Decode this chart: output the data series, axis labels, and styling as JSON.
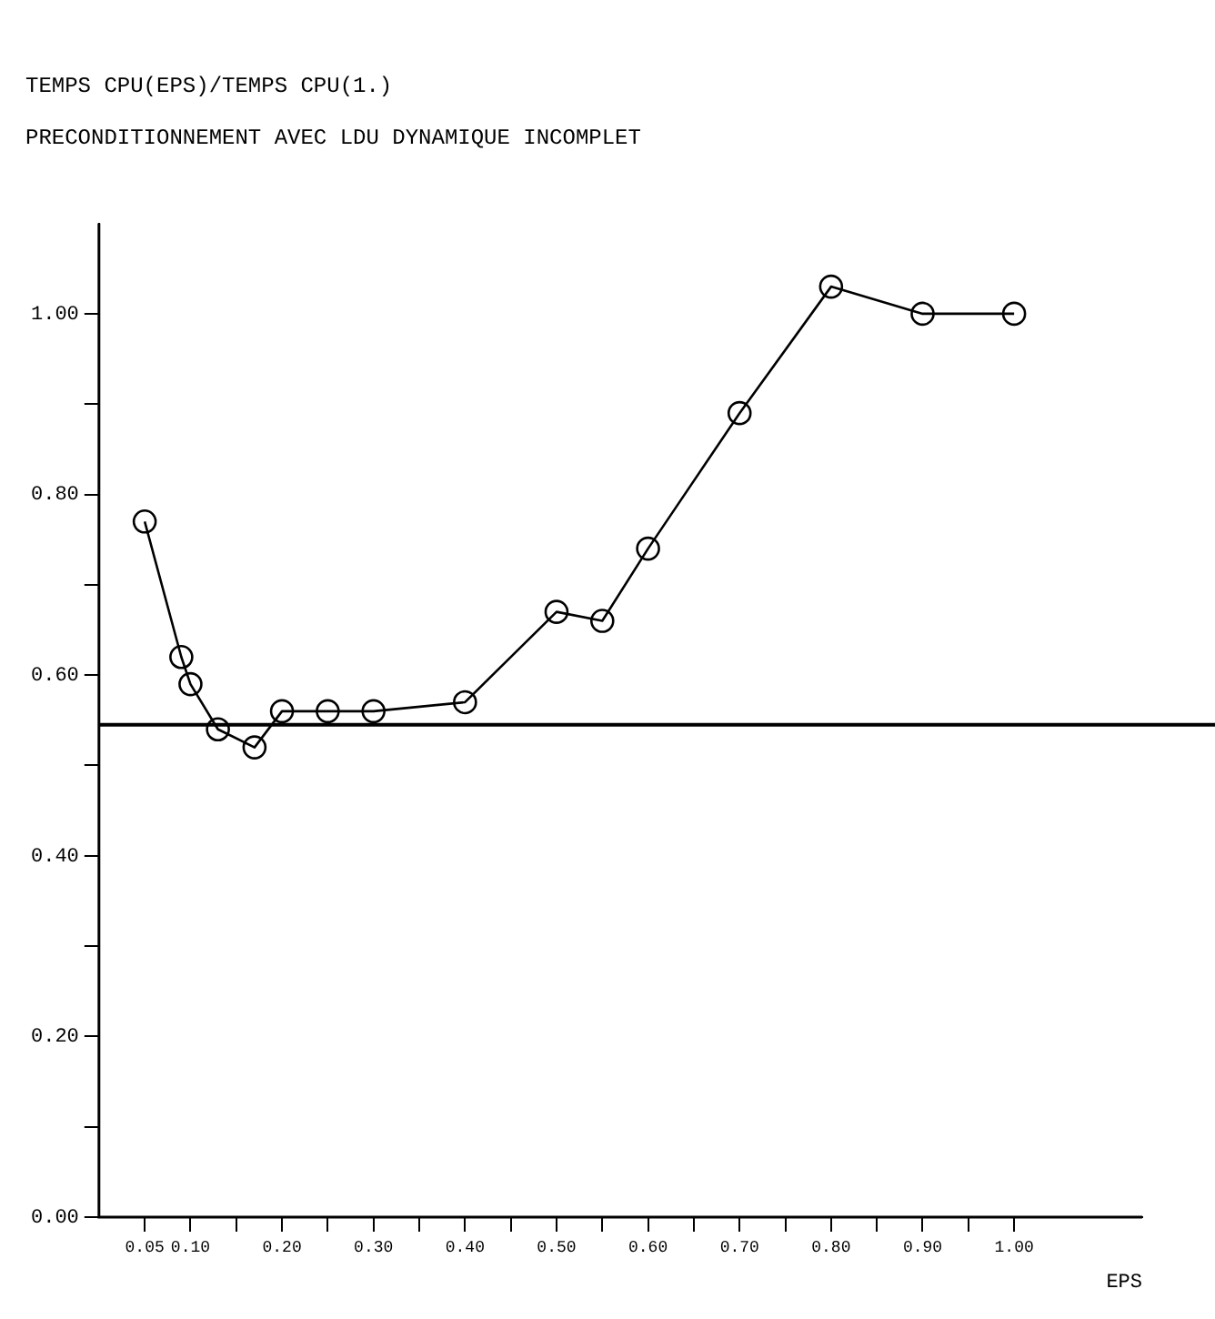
{
  "chart_data": {
    "type": "line",
    "title": "TEMPS CPU(EPS)/TEMPS CPU(1.)",
    "subtitle": "PRECONDITIONNEMENT AVEC LDU DYNAMIQUE INCOMPLET",
    "xlabel": "EPS",
    "x": [
      0.05,
      0.09,
      0.1,
      0.13,
      0.17,
      0.2,
      0.25,
      0.3,
      0.4,
      0.5,
      0.55,
      0.6,
      0.7,
      0.8,
      0.9,
      1.0
    ],
    "series": [
      {
        "color": "#000000",
        "values": [
          0.77,
          0.62,
          0.59,
          0.54,
          0.52,
          0.56,
          0.56,
          0.56,
          0.57,
          0.67,
          0.66,
          0.74,
          0.89,
          1.03,
          1.0,
          1.0
        ]
      }
    ],
    "xlim": [
      0,
      1.14
    ],
    "xticks": [
      {
        "value": 0.05,
        "label": "0.05"
      },
      {
        "value": 0.1,
        "label": "0.10"
      },
      {
        "value": 0.15,
        "label": null
      },
      {
        "value": 0.2,
        "label": "0.20"
      },
      {
        "value": 0.25,
        "label": null
      },
      {
        "value": 0.3,
        "label": "0.30"
      },
      {
        "value": 0.35,
        "label": null
      },
      {
        "value": 0.4,
        "label": "0.40"
      },
      {
        "value": 0.45,
        "label": null
      },
      {
        "value": 0.5,
        "label": "0.50"
      },
      {
        "value": 0.55,
        "label": null
      },
      {
        "value": 0.6,
        "label": "0.60"
      },
      {
        "value": 0.65,
        "label": null
      },
      {
        "value": 0.7,
        "label": "0.70"
      },
      {
        "value": 0.75,
        "label": null
      },
      {
        "value": 0.8,
        "label": "0.80"
      },
      {
        "value": 0.85,
        "label": null
      },
      {
        "value": 0.9,
        "label": "0.90"
      },
      {
        "value": 0.95,
        "label": null
      },
      {
        "value": 1.0,
        "label": "1.00"
      }
    ],
    "ylim": [
      0,
      1.1
    ],
    "yticks": [
      {
        "value": 0,
        "label": "0.00"
      },
      {
        "value": 0.1,
        "label": null
      },
      {
        "value": 0.2,
        "label": "0.20"
      },
      {
        "value": 0.3,
        "label": null
      },
      {
        "value": 0.4,
        "label": "0.40"
      },
      {
        "value": 0.5,
        "label": null
      },
      {
        "value": 0.6,
        "label": "0.60"
      },
      {
        "value": 0.7,
        "label": null
      },
      {
        "value": 0.8,
        "label": "0.80"
      },
      {
        "value": 0.9,
        "label": null
      },
      {
        "value": 1.0,
        "label": "1.00"
      }
    ],
    "ref_lines": [
      {
        "axis": "y",
        "value": 0.545
      }
    ],
    "grid": false,
    "legend": false,
    "marker": "circle",
    "line_style": "solid"
  }
}
